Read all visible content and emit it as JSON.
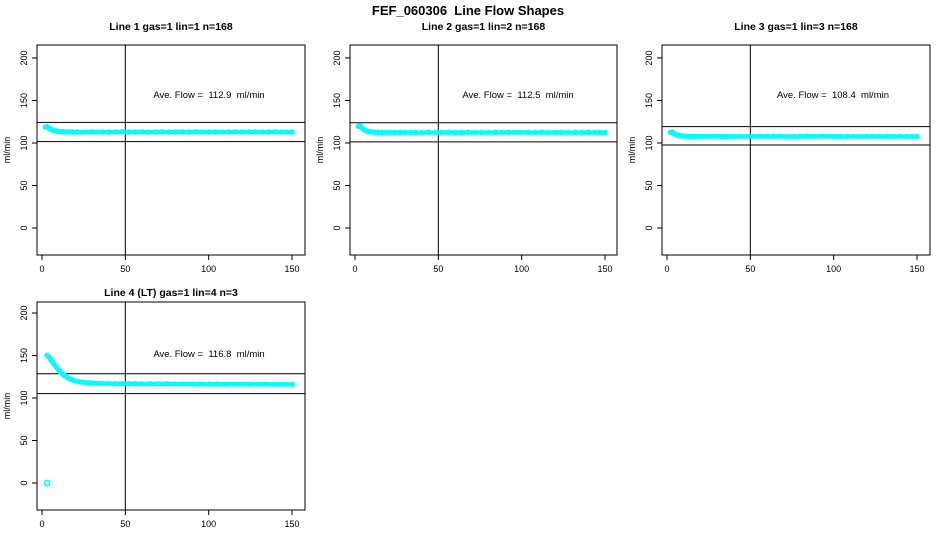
{
  "page_title": "FEF_060306  Line Flow Shapes",
  "colors": {
    "data_points": "#00ffff",
    "axis_lines": "#000000",
    "background": "#ffffff"
  },
  "y_axis_label": "ml/min",
  "chart_data": [
    {
      "type": "scatter",
      "title": "Line 1 gas=1 lin=1 n=168",
      "annotation": "Ave. Flow =  112.9  ml/min",
      "ave_flow": 112.9,
      "ref_lines_y": [
        124.2,
        101.6
      ],
      "vertical_ref_line_x": 50,
      "xticks": [
        0,
        50,
        100,
        150
      ],
      "yticks": [
        0,
        50,
        100,
        150,
        200
      ],
      "xlim": [
        -3,
        158
      ],
      "ylim": [
        -32,
        215
      ],
      "ylabel": "ml/min",
      "points": [
        [
          2,
          118.8
        ],
        [
          3,
          119.2
        ],
        [
          4,
          117.6
        ],
        [
          5,
          116.4
        ],
        [
          6,
          115.4
        ],
        [
          7,
          114.7
        ],
        [
          8,
          114.2
        ],
        [
          9,
          113.9
        ],
        [
          10,
          113.6
        ],
        [
          12,
          113.3
        ],
        [
          14,
          113.1
        ],
        [
          16,
          113.2
        ],
        [
          18,
          112.9
        ],
        [
          21,
          113.1
        ],
        [
          24,
          112.8
        ],
        [
          27,
          113.0
        ],
        [
          30,
          113.2
        ],
        [
          33,
          112.9
        ],
        [
          36,
          113.1
        ],
        [
          40,
          112.8
        ],
        [
          44,
          113.0
        ],
        [
          48,
          113.2
        ],
        [
          52,
          112.9
        ],
        [
          56,
          113.0
        ],
        [
          60,
          113.1
        ],
        [
          64,
          112.8
        ],
        [
          68,
          113.0
        ],
        [
          72,
          113.2
        ],
        [
          76,
          112.9
        ],
        [
          80,
          113.0
        ],
        [
          84,
          113.1
        ],
        [
          88,
          112.8
        ],
        [
          92,
          113.3
        ],
        [
          96,
          113.0
        ],
        [
          100,
          112.9
        ],
        [
          104,
          113.1
        ],
        [
          108,
          112.8
        ],
        [
          112,
          113.0
        ],
        [
          116,
          113.2
        ],
        [
          120,
          112.9
        ],
        [
          124,
          113.0
        ],
        [
          128,
          113.1
        ],
        [
          132,
          112.8
        ],
        [
          136,
          113.0
        ],
        [
          140,
          113.2
        ],
        [
          144,
          112.9
        ],
        [
          147,
          113.0
        ],
        [
          150,
          112.9
        ]
      ],
      "outlier_points": []
    },
    {
      "type": "scatter",
      "title": "Line 2 gas=1 lin=2 n=168",
      "annotation": "Ave. Flow =  112.5  ml/min",
      "ave_flow": 112.5,
      "ref_lines_y": [
        123.8,
        101.3
      ],
      "vertical_ref_line_x": 50,
      "xticks": [
        0,
        50,
        100,
        150
      ],
      "yticks": [
        0,
        50,
        100,
        150,
        200
      ],
      "xlim": [
        -3,
        158
      ],
      "ylim": [
        -32,
        215
      ],
      "ylabel": "ml/min",
      "points": [
        [
          2,
          119.5
        ],
        [
          3,
          120.0
        ],
        [
          4,
          118.0
        ],
        [
          5,
          116.3
        ],
        [
          6,
          115.0
        ],
        [
          7,
          114.2
        ],
        [
          8,
          113.6
        ],
        [
          9,
          113.2
        ],
        [
          10,
          112.9
        ],
        [
          12,
          112.7
        ],
        [
          14,
          112.5
        ],
        [
          16,
          112.6
        ],
        [
          18,
          112.4
        ],
        [
          21,
          112.6
        ],
        [
          24,
          112.3
        ],
        [
          27,
          112.5
        ],
        [
          30,
          112.6
        ],
        [
          33,
          112.4
        ],
        [
          36,
          112.5
        ],
        [
          40,
          112.3
        ],
        [
          44,
          112.6
        ],
        [
          48,
          112.4
        ],
        [
          52,
          112.5
        ],
        [
          56,
          112.6
        ],
        [
          60,
          112.3
        ],
        [
          64,
          112.5
        ],
        [
          68,
          112.6
        ],
        [
          72,
          112.4
        ],
        [
          76,
          112.5
        ],
        [
          80,
          112.3
        ],
        [
          84,
          112.6
        ],
        [
          88,
          112.4
        ],
        [
          92,
          112.5
        ],
        [
          96,
          112.7
        ],
        [
          100,
          112.4
        ],
        [
          104,
          112.5
        ],
        [
          108,
          112.3
        ],
        [
          112,
          112.6
        ],
        [
          116,
          112.4
        ],
        [
          120,
          112.5
        ],
        [
          124,
          112.6
        ],
        [
          128,
          112.3
        ],
        [
          132,
          112.5
        ],
        [
          136,
          112.4
        ],
        [
          140,
          112.6
        ],
        [
          144,
          112.3
        ],
        [
          147,
          112.5
        ],
        [
          150,
          112.2
        ]
      ],
      "outlier_points": []
    },
    {
      "type": "scatter",
      "title": "Line 3 gas=1 lin=3 n=168",
      "annotation": "Ave. Flow =  108.4  ml/min",
      "ave_flow": 108.4,
      "ref_lines_y": [
        119.2,
        97.6
      ],
      "vertical_ref_line_x": 50,
      "xticks": [
        0,
        50,
        100,
        150
      ],
      "yticks": [
        0,
        50,
        100,
        150,
        200
      ],
      "xlim": [
        -3,
        158
      ],
      "ylim": [
        -32,
        215
      ],
      "ylabel": "ml/min",
      "points": [
        [
          2,
          112.6
        ],
        [
          3,
          113.0
        ],
        [
          4,
          111.2
        ],
        [
          5,
          110.2
        ],
        [
          6,
          109.4
        ],
        [
          7,
          108.9
        ],
        [
          8,
          108.5
        ],
        [
          9,
          108.3
        ],
        [
          10,
          108.1
        ],
        [
          12,
          107.9
        ],
        [
          14,
          107.8
        ],
        [
          16,
          107.9
        ],
        [
          18,
          107.7
        ],
        [
          21,
          107.9
        ],
        [
          24,
          107.6
        ],
        [
          27,
          107.8
        ],
        [
          30,
          107.9
        ],
        [
          33,
          107.7
        ],
        [
          36,
          107.8
        ],
        [
          40,
          107.6
        ],
        [
          44,
          107.9
        ],
        [
          48,
          107.7
        ],
        [
          52,
          107.8
        ],
        [
          56,
          107.9
        ],
        [
          60,
          107.6
        ],
        [
          64,
          107.8
        ],
        [
          68,
          107.9
        ],
        [
          72,
          107.7
        ],
        [
          76,
          107.8
        ],
        [
          80,
          107.6
        ],
        [
          84,
          107.9
        ],
        [
          88,
          107.7
        ],
        [
          92,
          107.8
        ],
        [
          96,
          108.0
        ],
        [
          100,
          107.7
        ],
        [
          104,
          107.8
        ],
        [
          108,
          107.6
        ],
        [
          112,
          107.9
        ],
        [
          116,
          107.7
        ],
        [
          120,
          107.8
        ],
        [
          124,
          107.9
        ],
        [
          128,
          107.6
        ],
        [
          132,
          107.8
        ],
        [
          136,
          107.7
        ],
        [
          140,
          107.9
        ],
        [
          144,
          107.6
        ],
        [
          147,
          107.8
        ],
        [
          150,
          107.7
        ]
      ],
      "outlier_points": []
    },
    {
      "type": "scatter",
      "title": "Line 4 (LT) gas=1 lin=4 n=3",
      "annotation": "Ave. Flow =  116.8  ml/min",
      "ave_flow": 116.8,
      "ref_lines_y": [
        128.5,
        105.1
      ],
      "vertical_ref_line_x": 50,
      "xticks": [
        0,
        50,
        100,
        150
      ],
      "yticks": [
        0,
        50,
        100,
        150,
        200
      ],
      "xlim": [
        -3,
        158
      ],
      "ylim": [
        -32,
        215
      ],
      "ylabel": "ml/min",
      "points": [
        [
          3,
          150.2
        ],
        [
          4,
          148.3
        ],
        [
          5,
          145.8
        ],
        [
          6,
          143.2
        ],
        [
          7,
          140.4
        ],
        [
          8,
          137.8
        ],
        [
          9,
          135.2
        ],
        [
          10,
          132.8
        ],
        [
          11,
          130.7
        ],
        [
          12,
          128.8
        ],
        [
          13,
          127.2
        ],
        [
          14,
          125.7
        ],
        [
          15,
          124.4
        ],
        [
          16,
          123.3
        ],
        [
          17,
          122.3
        ],
        [
          18,
          121.5
        ],
        [
          19,
          120.8
        ],
        [
          20,
          120.2
        ],
        [
          22,
          119.3
        ],
        [
          24,
          118.7
        ],
        [
          26,
          118.2
        ],
        [
          28,
          117.9
        ],
        [
          30,
          117.6
        ],
        [
          33,
          117.4
        ],
        [
          36,
          117.2
        ],
        [
          40,
          117.0
        ],
        [
          44,
          116.9
        ],
        [
          48,
          116.9
        ],
        [
          52,
          116.8
        ],
        [
          56,
          116.8
        ],
        [
          60,
          116.7
        ],
        [
          65,
          116.7
        ],
        [
          70,
          116.6
        ],
        [
          75,
          116.6
        ],
        [
          80,
          116.5
        ],
        [
          85,
          116.5
        ],
        [
          90,
          116.5
        ],
        [
          95,
          116.4
        ],
        [
          100,
          116.4
        ],
        [
          105,
          116.4
        ],
        [
          110,
          116.3
        ],
        [
          115,
          116.3
        ],
        [
          120,
          116.3
        ],
        [
          125,
          116.2
        ],
        [
          130,
          116.2
        ],
        [
          135,
          116.2
        ],
        [
          140,
          116.1
        ],
        [
          145,
          116.1
        ],
        [
          150,
          116.0
        ]
      ],
      "outlier_points": [
        [
          3,
          0
        ]
      ]
    }
  ]
}
